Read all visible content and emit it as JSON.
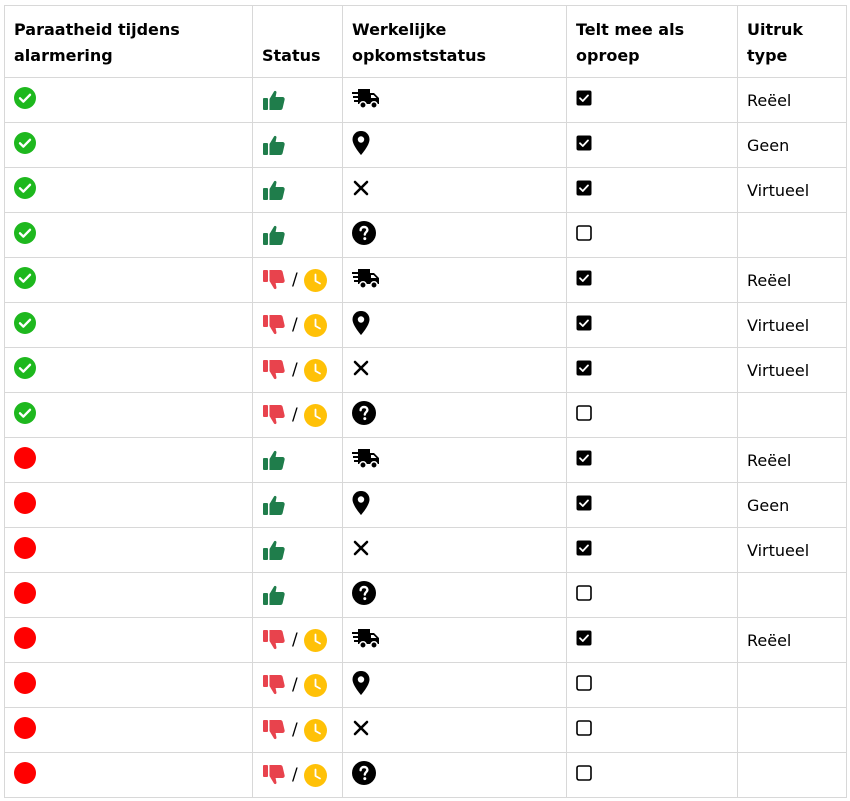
{
  "headers": {
    "readiness": "Paraatheid tijdens alarmering",
    "status": "Status",
    "actual": "Werkelijke opkomststatus",
    "counts": "Telt mee als oproep",
    "type": "Uitruk type"
  },
  "colors": {
    "ready_green": "#1eb81e",
    "not_ready_red": "#ff0000",
    "thumb_up_green": "#1f7d4b",
    "thumb_down_red": "#e8434d",
    "clock_yellow": "#ffc107"
  },
  "status_separator": "/",
  "rows": [
    {
      "readiness": "check-icon",
      "status": "thumbs-up",
      "actual": "truck",
      "counts": true,
      "type": "Reëel"
    },
    {
      "readiness": "check-icon",
      "status": "thumbs-up",
      "actual": "location",
      "counts": true,
      "type": "Geen"
    },
    {
      "readiness": "check-icon",
      "status": "thumbs-up",
      "actual": "cross",
      "counts": true,
      "type": "Virtueel"
    },
    {
      "readiness": "check-icon",
      "status": "thumbs-up",
      "actual": "question",
      "counts": false,
      "type": ""
    },
    {
      "readiness": "check-icon",
      "status": "thumbs-down-clock",
      "actual": "truck",
      "counts": true,
      "type": "Reëel"
    },
    {
      "readiness": "check-icon",
      "status": "thumbs-down-clock",
      "actual": "location",
      "counts": true,
      "type": "Virtueel"
    },
    {
      "readiness": "check-icon",
      "status": "thumbs-down-clock",
      "actual": "cross",
      "counts": true,
      "type": "Virtueel"
    },
    {
      "readiness": "check-icon",
      "status": "thumbs-down-clock",
      "actual": "question",
      "counts": false,
      "type": ""
    },
    {
      "readiness": "red-dot-icon",
      "status": "thumbs-up",
      "actual": "truck",
      "counts": true,
      "type": "Reëel"
    },
    {
      "readiness": "red-dot-icon",
      "status": "thumbs-up",
      "actual": "location",
      "counts": true,
      "type": "Geen"
    },
    {
      "readiness": "red-dot-icon",
      "status": "thumbs-up",
      "actual": "cross",
      "counts": true,
      "type": "Virtueel"
    },
    {
      "readiness": "red-dot-icon",
      "status": "thumbs-up",
      "actual": "question",
      "counts": false,
      "type": ""
    },
    {
      "readiness": "red-dot-icon",
      "status": "thumbs-down-clock",
      "actual": "truck",
      "counts": true,
      "type": "Reëel"
    },
    {
      "readiness": "red-dot-icon",
      "status": "thumbs-down-clock",
      "actual": "location",
      "counts": false,
      "type": ""
    },
    {
      "readiness": "red-dot-icon",
      "status": "thumbs-down-clock",
      "actual": "cross",
      "counts": false,
      "type": ""
    },
    {
      "readiness": "red-dot-icon",
      "status": "thumbs-down-clock",
      "actual": "question",
      "counts": false,
      "type": ""
    }
  ]
}
